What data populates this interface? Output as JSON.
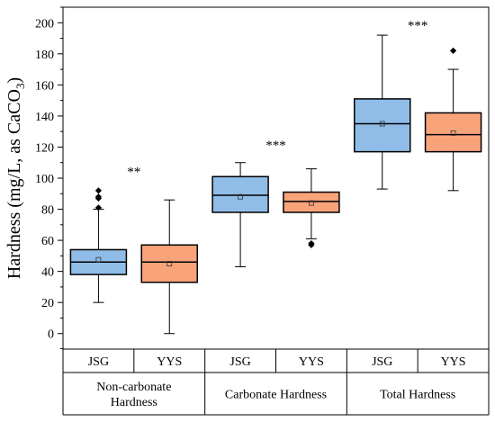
{
  "chart_data": {
    "type": "box",
    "ylabel": "Hardness (mg/L, as CaCO",
    "ylabel_sub": "3",
    "ylabel_close": ")",
    "ylim": [
      -10,
      210
    ],
    "yticks": [
      0,
      20,
      40,
      60,
      80,
      100,
      120,
      140,
      160,
      180,
      200
    ],
    "grid": false,
    "colors": {
      "JSG": "#8fbde8",
      "YYS": "#f9a37a"
    },
    "groups": [
      {
        "name_lines": [
          "Non-carbonate",
          "Hardness"
        ],
        "significance": "**",
        "sig_y": 105,
        "boxes": [
          {
            "label": "JSG",
            "series": "JSG",
            "q1": 38,
            "median": 46,
            "q3": 54,
            "whisker_low": 20,
            "whisker_high": 80,
            "mean": 47.5,
            "outliers": [
              81,
              87,
              88,
              92
            ]
          },
          {
            "label": "YYS",
            "series": "YYS",
            "q1": 33,
            "median": 46,
            "q3": 57,
            "whisker_low": 0,
            "whisker_high": 86,
            "mean": 45,
            "outliers": []
          }
        ]
      },
      {
        "name_lines": [
          "Carbonate Hardness"
        ],
        "significance": "***",
        "sig_y": 122,
        "boxes": [
          {
            "label": "JSG",
            "series": "JSG",
            "q1": 78,
            "median": 89,
            "q3": 101,
            "whisker_low": 43,
            "whisker_high": 110,
            "mean": 88,
            "outliers": []
          },
          {
            "label": "YYS",
            "series": "YYS",
            "q1": 78,
            "median": 85,
            "q3": 91,
            "whisker_low": 61,
            "whisker_high": 106,
            "mean": 84,
            "outliers": [
              57,
              58
            ]
          }
        ]
      },
      {
        "name_lines": [
          "Total Hardness"
        ],
        "significance": "***",
        "sig_y": 199,
        "boxes": [
          {
            "label": "JSG",
            "series": "JSG",
            "q1": 117,
            "median": 135,
            "q3": 151,
            "whisker_low": 93,
            "whisker_high": 192,
            "mean": 135,
            "outliers": []
          },
          {
            "label": "YYS",
            "series": "YYS",
            "q1": 117,
            "median": 128,
            "q3": 142,
            "whisker_low": 92,
            "whisker_high": 170,
            "mean": 129,
            "outliers": [
              182
            ]
          }
        ]
      }
    ]
  }
}
